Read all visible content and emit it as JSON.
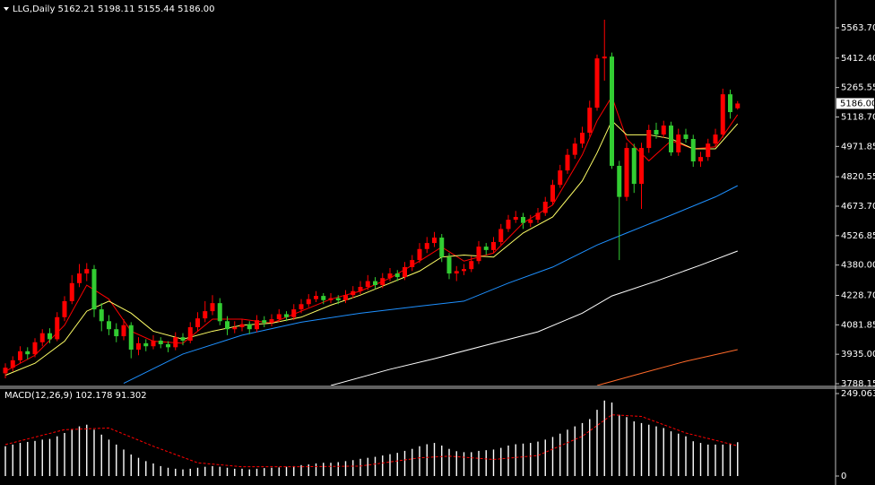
{
  "chart_data": [
    {
      "type": "candlestick",
      "title": "LLG,Daily  5162.21 5198.11 5155.44 5186.00",
      "up_color": "#ff0000",
      "down_color": "#32cd32",
      "candles": [
        [
          3840,
          3890,
          3815,
          3868
        ],
        [
          3868,
          3925,
          3850,
          3905
        ],
        [
          3905,
          3975,
          3890,
          3950
        ],
        [
          3950,
          3970,
          3910,
          3935
        ],
        [
          3935,
          4015,
          3920,
          3995
        ],
        [
          3995,
          4060,
          3975,
          4040
        ],
        [
          4040,
          4065,
          3990,
          4010
        ],
        [
          4010,
          4145,
          4000,
          4120
        ],
        [
          4120,
          4225,
          4100,
          4200
        ],
        [
          4200,
          4330,
          4185,
          4290
        ],
        [
          4290,
          4385,
          4270,
          4338
        ],
        [
          4338,
          4390,
          4300,
          4360
        ],
        [
          4360,
          4380,
          4120,
          4159
        ],
        [
          4159,
          4190,
          4050,
          4100
        ],
        [
          4100,
          4130,
          4030,
          4060
        ],
        [
          4060,
          4090,
          3995,
          4025
        ],
        [
          4025,
          4110,
          4005,
          4080
        ],
        [
          4080,
          4095,
          3915,
          3958
        ],
        [
          3958,
          4020,
          3930,
          3990
        ],
        [
          3990,
          4010,
          3950,
          3975
        ],
        [
          3975,
          4030,
          3960,
          4003
        ],
        [
          4003,
          4020,
          3965,
          3985
        ],
        [
          3985,
          4000,
          3945,
          3970
        ],
        [
          3970,
          4045,
          3955,
          4020
        ],
        [
          4020,
          4040,
          3980,
          4003
        ],
        [
          4003,
          4095,
          3990,
          4070
        ],
        [
          4070,
          4145,
          4050,
          4114
        ],
        [
          4114,
          4200,
          4095,
          4150
        ],
        [
          4150,
          4230,
          4130,
          4190
        ],
        [
          4190,
          4215,
          4080,
          4100
        ],
        [
          4100,
          4125,
          4030,
          4060
        ],
        [
          4060,
          4100,
          4040,
          4070
        ],
        [
          4070,
          4110,
          4050,
          4085
        ],
        [
          4085,
          4100,
          4035,
          4060
        ],
        [
          4060,
          4130,
          4045,
          4105
        ],
        [
          4105,
          4125,
          4070,
          4092
        ],
        [
          4092,
          4135,
          4075,
          4110
        ],
        [
          4110,
          4160,
          4095,
          4135
        ],
        [
          4135,
          4150,
          4100,
          4120
        ],
        [
          4120,
          4185,
          4105,
          4159
        ],
        [
          4159,
          4210,
          4140,
          4185
        ],
        [
          4185,
          4235,
          4170,
          4210
        ],
        [
          4210,
          4250,
          4195,
          4226
        ],
        [
          4226,
          4240,
          4185,
          4205
        ],
        [
          4205,
          4240,
          4190,
          4215
        ],
        [
          4215,
          4230,
          4185,
          4204
        ],
        [
          4204,
          4255,
          4190,
          4230
        ],
        [
          4230,
          4275,
          4215,
          4250
        ],
        [
          4250,
          4300,
          4235,
          4271
        ],
        [
          4271,
          4330,
          4255,
          4300
        ],
        [
          4300,
          4320,
          4260,
          4280
        ],
        [
          4280,
          4340,
          4265,
          4315
        ],
        [
          4315,
          4365,
          4300,
          4338
        ],
        [
          4338,
          4355,
          4300,
          4320
        ],
        [
          4320,
          4395,
          4305,
          4370
        ],
        [
          4370,
          4430,
          4350,
          4405
        ],
        [
          4405,
          4490,
          4390,
          4460
        ],
        [
          4460,
          4520,
          4440,
          4490
        ],
        [
          4490,
          4545,
          4470,
          4517
        ],
        [
          4517,
          4535,
          4395,
          4420
        ],
        [
          4420,
          4440,
          4310,
          4338
        ],
        [
          4338,
          4375,
          4300,
          4350
        ],
        [
          4350,
          4385,
          4330,
          4360
        ],
        [
          4360,
          4425,
          4345,
          4400
        ],
        [
          4400,
          4500,
          4385,
          4472
        ],
        [
          4472,
          4490,
          4430,
          4455
        ],
        [
          4455,
          4520,
          4440,
          4495
        ],
        [
          4495,
          4585,
          4480,
          4560
        ],
        [
          4560,
          4630,
          4545,
          4606
        ],
        [
          4606,
          4650,
          4590,
          4620
        ],
        [
          4620,
          4640,
          4560,
          4590
        ],
        [
          4590,
          4630,
          4570,
          4606
        ],
        [
          4606,
          4665,
          4590,
          4640
        ],
        [
          4640,
          4720,
          4625,
          4696
        ],
        [
          4696,
          4805,
          4680,
          4780
        ],
        [
          4780,
          4880,
          4765,
          4852
        ],
        [
          4852,
          4960,
          4835,
          4930
        ],
        [
          4930,
          5015,
          4910,
          4986
        ],
        [
          4986,
          5070,
          4965,
          5040
        ],
        [
          5040,
          5200,
          5020,
          5165
        ],
        [
          5165,
          5430,
          5150,
          5411
        ],
        [
          5411,
          5604,
          5300,
          5420
        ],
        [
          5420,
          5440,
          4860,
          4875
        ],
        [
          4875,
          4900,
          4405,
          4720
        ],
        [
          4720,
          4990,
          4700,
          4964
        ],
        [
          4964,
          4985,
          4740,
          4785
        ],
        [
          4785,
          4990,
          4660,
          4964
        ],
        [
          4964,
          5080,
          4940,
          5054
        ],
        [
          5054,
          5090,
          5010,
          5031
        ],
        [
          5031,
          5100,
          5015,
          5076
        ],
        [
          5076,
          5095,
          4925,
          4942
        ],
        [
          4942,
          5060,
          4925,
          5031
        ],
        [
          5031,
          5060,
          4990,
          5009
        ],
        [
          5009,
          5030,
          4870,
          4897
        ],
        [
          4897,
          4945,
          4870,
          4919
        ],
        [
          4919,
          5010,
          4900,
          4986
        ],
        [
          4986,
          5060,
          4970,
          5031
        ],
        [
          5031,
          5260,
          5015,
          5232
        ],
        [
          5232,
          5255,
          5110,
          5143
        ],
        [
          5162.21,
          5198.11,
          5155.44,
          5186.0
        ]
      ],
      "overlays": [
        {
          "color": "#ff0000",
          "x": [
            0,
            4,
            8,
            11,
            14,
            17,
            20,
            24,
            28,
            32,
            36,
            40,
            44,
            48,
            52,
            56,
            59,
            62,
            66,
            70,
            74,
            78,
            80,
            82,
            84,
            87,
            90,
            93,
            96,
            99
          ],
          "values": [
            3850,
            3930,
            4080,
            4280,
            4210,
            4050,
            4000,
            3990,
            4110,
            4110,
            4090,
            4150,
            4210,
            4250,
            4315,
            4400,
            4470,
            4400,
            4440,
            4590,
            4680,
            4930,
            5100,
            5220,
            5010,
            4900,
            5000,
            4960,
            4970,
            5130
          ]
        },
        {
          "color": "#ffff66",
          "x": [
            0,
            4,
            8,
            11,
            14,
            17,
            20,
            24,
            28,
            32,
            36,
            40,
            44,
            48,
            52,
            56,
            59,
            62,
            66,
            70,
            74,
            78,
            80,
            82,
            84,
            87,
            90,
            93,
            96,
            99
          ],
          "values": [
            3830,
            3890,
            4000,
            4150,
            4200,
            4140,
            4050,
            4010,
            4050,
            4080,
            4090,
            4120,
            4180,
            4230,
            4290,
            4350,
            4420,
            4430,
            4420,
            4540,
            4620,
            4800,
            4940,
            5100,
            5030,
            5030,
            5010,
            4960,
            4960,
            5085
          ]
        },
        {
          "color": "#1e90ff",
          "x": [
            16,
            24,
            32,
            40,
            48,
            56,
            62,
            68,
            74,
            80,
            84,
            90,
            96,
            99
          ],
          "values": [
            3790,
            3936,
            4030,
            4095,
            4140,
            4175,
            4200,
            4290,
            4370,
            4480,
            4540,
            4629,
            4720,
            4776
          ]
        },
        {
          "color": "#ffffff",
          "x": [
            44,
            52,
            58,
            66,
            72,
            78,
            82,
            88,
            94,
            99
          ],
          "values": [
            3779,
            3860,
            3913,
            3990,
            4047,
            4140,
            4226,
            4300,
            4380,
            4450
          ]
        },
        {
          "color": "#ff6a2a",
          "x": [
            80,
            86,
            92,
            99
          ],
          "values": [
            3779,
            3840,
            3900,
            3958
          ]
        }
      ],
      "last_price": {
        "value": 5186.0,
        "label": "5186.00"
      },
      "ylim": [
        3779.2,
        5702.3
      ],
      "yticks": [
        {
          "value": 5563.7,
          "label": "5563.70"
        },
        {
          "value": 5412.4,
          "label": "5412.40"
        },
        {
          "value": 5265.55,
          "label": "5265.55"
        },
        {
          "value": 5118.7,
          "label": "5118.70"
        },
        {
          "value": 4971.85,
          "label": "4971.85"
        },
        {
          "value": 4820.55,
          "label": "4820.55"
        },
        {
          "value": 4673.7,
          "label": "4673.70"
        },
        {
          "value": 4526.85,
          "label": "4526.85"
        },
        {
          "value": 4380.0,
          "label": "4380.00"
        },
        {
          "value": 4228.7,
          "label": "4228.70"
        },
        {
          "value": 4081.85,
          "label": "4081.85"
        },
        {
          "value": 3935.0,
          "label": "3935.00"
        },
        {
          "value": 3788.15,
          "label": "3788.15"
        }
      ]
    },
    {
      "type": "macd",
      "title": "MACD(12,26,9) 102.178 91.302",
      "color": "#ffffff",
      "values": [
        90,
        95,
        100,
        103,
        106,
        110,
        112,
        120,
        130,
        140,
        150,
        155,
        140,
        125,
        110,
        95,
        80,
        65,
        55,
        45,
        38,
        30,
        25,
        22,
        20,
        22,
        25,
        28,
        30,
        28,
        25,
        22,
        22,
        20,
        22,
        24,
        25,
        26,
        28,
        30,
        33,
        35,
        38,
        40,
        40,
        42,
        45,
        48,
        52,
        55,
        58,
        62,
        66,
        70,
        76,
        82,
        90,
        96,
        100,
        92,
        82,
        75,
        72,
        72,
        76,
        78,
        80,
        85,
        92,
        96,
        98,
        100,
        104,
        110,
        118,
        128,
        140,
        150,
        160,
        172,
        200,
        228,
        222,
        185,
        178,
        165,
        160,
        155,
        150,
        145,
        135,
        128,
        120,
        105,
        100,
        95,
        95,
        95,
        98,
        102.178
      ],
      "signal": {
        "color": "#ff0000",
        "x": [
          0,
          8,
          14,
          20,
          26,
          32,
          40,
          48,
          56,
          60,
          66,
          72,
          78,
          82,
          86,
          92,
          99
        ],
        "values": [
          95,
          140,
          145,
          90,
          40,
          28,
          28,
          30,
          55,
          60,
          50,
          62,
          120,
          185,
          180,
          130,
          91.302
        ]
      },
      "ylim": [
        -27.1,
        265.3
      ],
      "yticks": [
        249.063,
        0
      ]
    }
  ]
}
